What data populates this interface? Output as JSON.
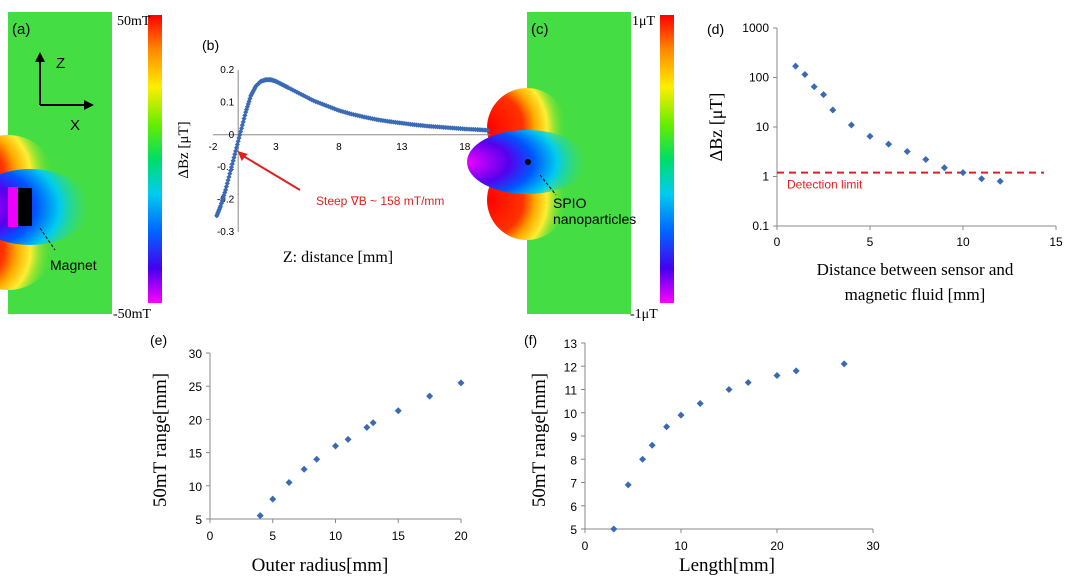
{
  "panels": {
    "a": {
      "label": "(a)",
      "axis_z": "Z",
      "axis_x": "X",
      "annotation": "Magnet",
      "colorbar_top": "50mT",
      "colorbar_bottom": "-50mT"
    },
    "c": {
      "label": "(c)",
      "annotation": "SPIO\nnanoparticles",
      "colorbar_top": "1μT",
      "colorbar_bottom": "-1μT"
    }
  },
  "chart_data": [
    {
      "panel": "(b)",
      "type": "scatter",
      "xlabel": "Z: distance [mm]",
      "ylabel": "ΔBz [μT]",
      "xticks": [
        -2,
        3,
        8,
        13,
        18
      ],
      "yticks": [
        -0.3,
        -0.2,
        -0.1,
        0,
        0.1,
        0.2
      ],
      "xlim": [
        -2,
        20
      ],
      "ylim": [
        -0.3,
        0.2
      ],
      "annotation": "Steep ∇B ~ 158 mT/mm",
      "annotation_color": "#e02020",
      "series": [
        {
          "x": [
            -1.7,
            -1.4,
            -1.0,
            -0.6,
            -0.2,
            0.2,
            0.6,
            1.0,
            1.4,
            1.8,
            2.2,
            2.6,
            3.0,
            3.5,
            4.0,
            5.0,
            6.0,
            7.0,
            8.0,
            9.0,
            10.0,
            11.0,
            12.0,
            13.0,
            14.0,
            15.0,
            16.0,
            17.0,
            18.0,
            19.0,
            19.8
          ],
          "y": [
            -0.25,
            -0.22,
            -0.17,
            -0.11,
            -0.05,
            0.01,
            0.07,
            0.12,
            0.15,
            0.165,
            0.17,
            0.17,
            0.165,
            0.155,
            0.145,
            0.125,
            0.105,
            0.09,
            0.075,
            0.064,
            0.055,
            0.047,
            0.041,
            0.036,
            0.031,
            0.027,
            0.024,
            0.021,
            0.018,
            0.016,
            0.014
          ]
        }
      ]
    },
    {
      "panel": "(d)",
      "type": "scatter",
      "xlabel": "Distance between sensor and\nmagnetic fluid [mm]",
      "ylabel": "ΔBz [μT]",
      "yscale": "log",
      "xticks": [
        0,
        5,
        10,
        15
      ],
      "yticks": [
        0.1,
        1,
        10,
        100,
        1000
      ],
      "ytick_labels": [
        "0.1",
        "1",
        "10",
        "100",
        "1000"
      ],
      "xlim": [
        0,
        15
      ],
      "ylim": [
        0.1,
        1000
      ],
      "detection_limit": 1.2,
      "detection_label": "Detection limit",
      "series": [
        {
          "x": [
            1,
            1.5,
            2,
            2.5,
            3,
            4,
            5,
            6,
            7,
            8,
            9,
            10,
            11,
            12
          ],
          "y": [
            170,
            115,
            65,
            45,
            22,
            11,
            6.5,
            4.5,
            3.2,
            2.2,
            1.5,
            1.2,
            0.9,
            0.8
          ]
        }
      ]
    },
    {
      "panel": "(e)",
      "type": "scatter",
      "xlabel": "Outer radius[mm]",
      "ylabel": "50mT range[mm]",
      "xticks": [
        0,
        5,
        10,
        15,
        20
      ],
      "yticks": [
        5,
        10,
        15,
        20,
        25,
        30
      ],
      "xlim": [
        0,
        20
      ],
      "ylim": [
        5,
        30
      ],
      "series": [
        {
          "x": [
            4,
            5,
            6.3,
            7.5,
            8.5,
            10,
            11,
            12.5,
            13,
            15,
            17.5,
            20
          ],
          "y": [
            5.5,
            8,
            10.5,
            12.5,
            14,
            16,
            17,
            18.8,
            19.5,
            21.3,
            23.5,
            25.5
          ]
        }
      ]
    },
    {
      "panel": "(f)",
      "type": "scatter",
      "xlabel": "Length[mm]",
      "ylabel": "50mT range[mm]",
      "xticks": [
        0,
        10,
        20,
        30
      ],
      "yticks": [
        5,
        6,
        7,
        8,
        9,
        10,
        11,
        12,
        13
      ],
      "xlim": [
        0,
        30
      ],
      "ylim": [
        5,
        13
      ],
      "series": [
        {
          "x": [
            3,
            4.5,
            6,
            7,
            8.5,
            10,
            12,
            15,
            17,
            20,
            22,
            27
          ],
          "y": [
            5,
            6.9,
            8.0,
            8.6,
            9.4,
            9.9,
            10.4,
            11.0,
            11.3,
            11.6,
            11.8,
            12.1
          ]
        }
      ]
    }
  ]
}
